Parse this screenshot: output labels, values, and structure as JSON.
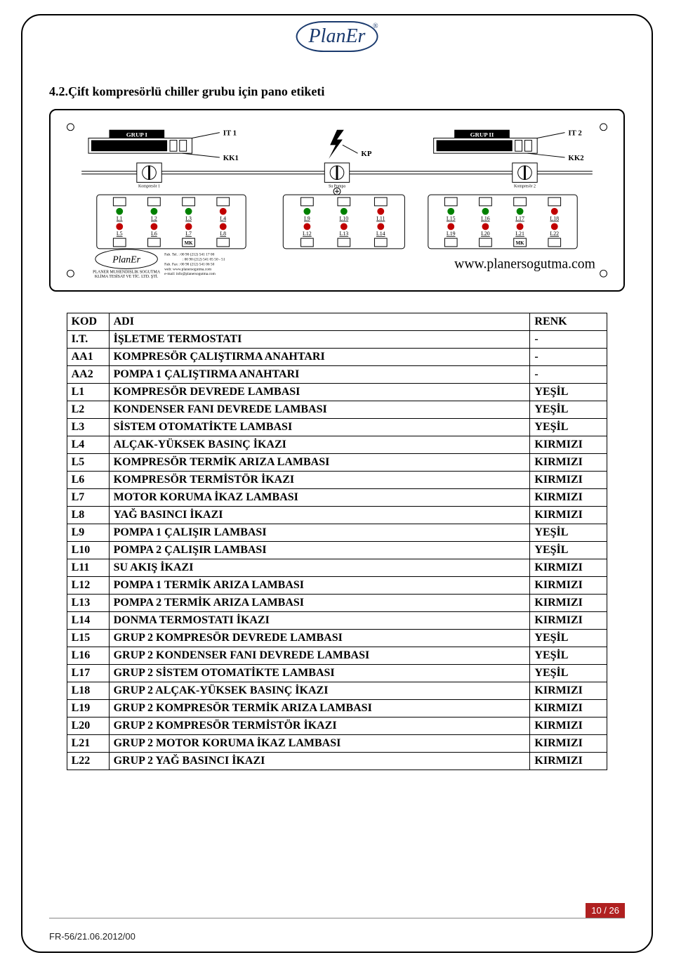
{
  "logo": {
    "text": "PlanEr"
  },
  "section_title": "4.2.Çift kompresörlü chiller grubu için pano etiketi",
  "footer": {
    "page_num": "10 / 26",
    "doc_code": "FR-56/21.06.2012/00"
  },
  "panel": {
    "group_left": "GRUP I",
    "group_right": "GRUP II",
    "it1": "IT 1",
    "it2": "IT 2",
    "kk1": "KK1",
    "kk2": "KK2",
    "kp": "KP",
    "dial_labels": [
      "Kompresör 1",
      "Su Pompa",
      "Kompresör 2"
    ],
    "url": "www.planersogutma.com",
    "bottom_logo": "PlanEr",
    "company_lines": [
      "PLANER MUHENDISLIK SOGUTMA",
      "KLİMA TESİSAT VE TİC. LTD. ŞTİ."
    ],
    "contact_lines": [
      "Fab. Tel. : 00 90 (212) 541 17 00",
      ": 00 90 (212) 541 05 50 - 51",
      "Fab. Fax : 00 90 (212) 541 06 50",
      "web: www.planersogutma.com",
      "e-mail: info@planersogutma.com"
    ],
    "lamp_groups": [
      {
        "top": [
          "L1",
          "L2",
          "L3",
          "L4"
        ],
        "bottom": [
          "L5",
          "L6",
          "L7",
          "L8"
        ],
        "bottom_labels": [
          "",
          "",
          "MK",
          ""
        ]
      },
      {
        "top": [
          "L9",
          "L10",
          "L11"
        ],
        "bottom": [
          "L12",
          "L13",
          "L14"
        ],
        "bottom_labels": [
          "",
          "",
          ""
        ]
      },
      {
        "top": [
          "L15",
          "L16",
          "L17",
          "L18"
        ],
        "bottom": [
          "L19",
          "L20",
          "L21",
          "L22"
        ],
        "bottom_labels": [
          "",
          "",
          "MK",
          ""
        ]
      }
    ]
  },
  "table": {
    "columns": [
      "KOD",
      "ADI",
      "RENK"
    ],
    "rows": [
      [
        "I.T.",
        "İŞLETME TERMOSTATI",
        "-"
      ],
      [
        "AA1",
        "KOMPRESÖR ÇALIŞTIRMA ANAHTARI",
        "-"
      ],
      [
        "AA2",
        "POMPA 1 ÇALIŞTIRMA ANAHTARI",
        "-"
      ],
      [
        "L1",
        "KOMPRESÖR DEVREDE LAMBASI",
        "YEŞİL"
      ],
      [
        "L2",
        "KONDENSER FANI DEVREDE LAMBASI",
        "YEŞİL"
      ],
      [
        "L3",
        "SİSTEM OTOMATİKTE LAMBASI",
        "YEŞİL"
      ],
      [
        "L4",
        "ALÇAK-YÜKSEK BASINÇ İKAZI",
        "KIRMIZI"
      ],
      [
        "L5",
        "KOMPRESÖR TERMİK ARIZA LAMBASI",
        "KIRMIZI"
      ],
      [
        "L6",
        "KOMPRESÖR TERMİSTÖR İKAZI",
        "KIRMIZI"
      ],
      [
        "L7",
        "MOTOR KORUMA İKAZ LAMBASI",
        "KIRMIZI"
      ],
      [
        "L8",
        "YAĞ BASINCI İKAZI",
        "KIRMIZI"
      ],
      [
        "L9",
        "POMPA 1 ÇALIŞIR LAMBASI",
        "YEŞİL"
      ],
      [
        "L10",
        "POMPA 2 ÇALIŞIR LAMBASI",
        "YEŞİL"
      ],
      [
        "L11",
        "SU AKIŞ İKAZI",
        "KIRMIZI"
      ],
      [
        "L12",
        "POMPA 1 TERMİK ARIZA LAMBASI",
        "KIRMIZI"
      ],
      [
        "L13",
        "POMPA 2 TERMİK ARIZA LAMBASI",
        "KIRMIZI"
      ],
      [
        "L14",
        "DONMA TERMOSTATI İKAZI",
        "KIRMIZI"
      ],
      [
        "L15",
        "GRUP 2 KOMPRESÖR DEVREDE LAMBASI",
        "YEŞİL"
      ],
      [
        "L16",
        "GRUP 2 KONDENSER FANI DEVREDE LAMBASI",
        "YEŞİL"
      ],
      [
        "L17",
        "GRUP 2 SİSTEM OTOMATİKTE LAMBASI",
        "YEŞİL"
      ],
      [
        "L18",
        "GRUP 2 ALÇAK-YÜKSEK BASINÇ İKAZI",
        "KIRMIZI"
      ],
      [
        "L19",
        "GRUP 2 KOMPRESÖR TERMİK ARIZA LAMBASI",
        "KIRMIZI"
      ],
      [
        "L20",
        "GRUP 2 KOMPRESÖR TERMİSTÖR İKAZI",
        "KIRMIZI"
      ],
      [
        "L21",
        "GRUP 2 MOTOR KORUMA İKAZ LAMBASI",
        "KIRMIZI"
      ],
      [
        "L22",
        "GRUP 2 YAĞ BASINCI İKAZI",
        "KIRMIZI"
      ]
    ]
  }
}
